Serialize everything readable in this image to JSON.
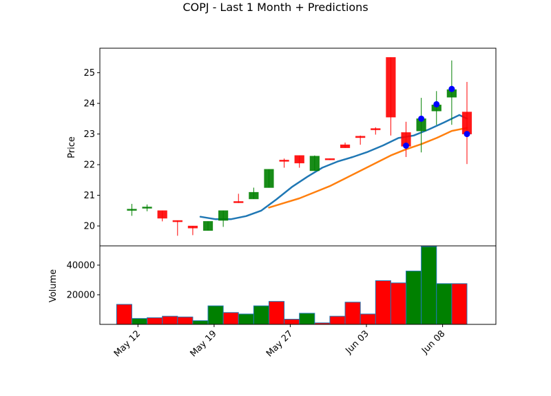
{
  "chart_data": {
    "type": "candlestick",
    "title": "COPJ - Last 1 Month + Predictions",
    "price_panel": {
      "ylabel": "Price",
      "ylim": [
        19.35,
        25.8
      ],
      "yticks": [
        20,
        21,
        22,
        23,
        24,
        25
      ],
      "ytick_labels": [
        "20",
        "21",
        "22",
        "23",
        "24",
        "25"
      ],
      "grid": false
    },
    "volume_panel": {
      "ylabel": "Volume",
      "ylim": [
        0,
        53000
      ],
      "yticks": [
        20000,
        40000
      ],
      "ytick_labels": [
        "20000",
        "40000"
      ],
      "grid": false
    },
    "xlim": [
      0,
      26
    ],
    "xticks": [
      {
        "x": 2.5,
        "label": "May 12"
      },
      {
        "x": 7.5,
        "label": "May 19"
      },
      {
        "x": 12.5,
        "label": "May 27"
      },
      {
        "x": 17.5,
        "label": "Jun 03"
      },
      {
        "x": 22.5,
        "label": "Jun 08"
      }
    ],
    "colors": {
      "up": "#008000",
      "down": "#ff0000",
      "ma_short": "#1f77b4",
      "ma_long": "#ff7f0e",
      "prediction": "#0000ff"
    },
    "candles": [
      {
        "x": 2.1,
        "open": 20.55,
        "high": 20.72,
        "low": 20.33,
        "close": 20.55
      },
      {
        "x": 3.1,
        "open": 20.58,
        "high": 20.7,
        "low": 20.48,
        "close": 20.62
      },
      {
        "x": 4.1,
        "open": 20.5,
        "high": 20.5,
        "low": 20.15,
        "close": 20.25
      },
      {
        "x": 5.1,
        "open": 20.18,
        "high": 20.18,
        "low": 19.68,
        "close": 20.15
      },
      {
        "x": 6.1,
        "open": 20.0,
        "high": 20.0,
        "low": 19.7,
        "close": 19.93
      },
      {
        "x": 7.1,
        "open": 19.85,
        "high": 20.15,
        "low": 19.85,
        "close": 20.15
      },
      {
        "x": 8.1,
        "open": 20.18,
        "high": 20.5,
        "low": 19.97,
        "close": 20.5
      },
      {
        "x": 9.1,
        "open": 20.8,
        "high": 21.05,
        "low": 20.75,
        "close": 20.77
      },
      {
        "x": 10.1,
        "open": 20.88,
        "high": 21.25,
        "low": 20.88,
        "close": 21.1
      },
      {
        "x": 11.1,
        "open": 21.25,
        "high": 21.85,
        "low": 21.25,
        "close": 21.85
      },
      {
        "x": 12.1,
        "open": 22.15,
        "high": 22.2,
        "low": 21.9,
        "close": 22.12
      },
      {
        "x": 13.1,
        "open": 22.3,
        "high": 22.3,
        "low": 21.9,
        "close": 22.05
      },
      {
        "x": 14.1,
        "open": 21.8,
        "high": 22.3,
        "low": 21.8,
        "close": 22.28
      },
      {
        "x": 15.1,
        "open": 22.2,
        "high": 22.2,
        "low": 22.15,
        "close": 22.18
      },
      {
        "x": 16.1,
        "open": 22.65,
        "high": 22.72,
        "low": 22.55,
        "close": 22.55
      },
      {
        "x": 17.1,
        "open": 22.93,
        "high": 22.95,
        "low": 22.65,
        "close": 22.88
      },
      {
        "x": 18.1,
        "open": 23.18,
        "high": 23.22,
        "low": 22.98,
        "close": 23.15
      },
      {
        "x": 19.1,
        "open": 25.5,
        "high": 25.5,
        "low": 22.95,
        "close": 23.55
      },
      {
        "x": 20.1,
        "open": 23.05,
        "high": 23.4,
        "low": 22.25,
        "close": 22.6
      },
      {
        "x": 21.1,
        "open": 23.1,
        "high": 24.18,
        "low": 22.4,
        "close": 23.5
      },
      {
        "x": 22.1,
        "open": 23.75,
        "high": 24.4,
        "low": 23.3,
        "close": 23.95
      },
      {
        "x": 23.1,
        "open": 24.2,
        "high": 25.4,
        "low": 23.3,
        "close": 24.45
      },
      {
        "x": 24.1,
        "open": 23.72,
        "high": 24.7,
        "low": 22.02,
        "close": 23.0
      }
    ],
    "volume": [
      {
        "x": 1.6,
        "value": 13500,
        "color": "down"
      },
      {
        "x": 2.6,
        "value": 4000,
        "color": "up"
      },
      {
        "x": 3.6,
        "value": 4500,
        "color": "down"
      },
      {
        "x": 4.6,
        "value": 5500,
        "color": "down"
      },
      {
        "x": 5.6,
        "value": 5000,
        "color": "down"
      },
      {
        "x": 6.6,
        "value": 2500,
        "color": "up"
      },
      {
        "x": 7.6,
        "value": 12500,
        "color": "up"
      },
      {
        "x": 8.6,
        "value": 8000,
        "color": "down"
      },
      {
        "x": 9.6,
        "value": 7000,
        "color": "up"
      },
      {
        "x": 10.6,
        "value": 12500,
        "color": "up"
      },
      {
        "x": 11.6,
        "value": 15500,
        "color": "down"
      },
      {
        "x": 12.6,
        "value": 3500,
        "color": "down"
      },
      {
        "x": 13.6,
        "value": 7500,
        "color": "up"
      },
      {
        "x": 14.6,
        "value": 1000,
        "color": "down"
      },
      {
        "x": 15.6,
        "value": 5500,
        "color": "down"
      },
      {
        "x": 16.6,
        "value": 15000,
        "color": "down"
      },
      {
        "x": 17.6,
        "value": 7000,
        "color": "down"
      },
      {
        "x": 18.6,
        "value": 29500,
        "color": "down"
      },
      {
        "x": 19.6,
        "value": 28000,
        "color": "down"
      },
      {
        "x": 20.6,
        "value": 36000,
        "color": "up"
      },
      {
        "x": 21.6,
        "value": 52500,
        "color": "up"
      },
      {
        "x": 22.6,
        "value": 27500,
        "color": "up"
      },
      {
        "x": 23.6,
        "value": 27500,
        "color": "down"
      }
    ],
    "moving_averages": [
      {
        "color": "ma_short",
        "x": [
          6.6,
          7.6,
          8.6,
          9.6,
          10.6,
          11.6,
          12.6,
          13.6,
          14.6,
          15.6,
          16.6,
          17.6,
          18.6,
          19.6,
          20.6,
          21.6,
          22.6,
          23.6
        ],
        "y": [
          20.3,
          20.22,
          20.22,
          20.32,
          20.5,
          20.87,
          21.27,
          21.6,
          21.9,
          22.1,
          22.25,
          22.42,
          22.63,
          22.87,
          22.95,
          23.15,
          23.38,
          23.62
        ]
      },
      {
        "color": "ma_short",
        "x": [
          23.6,
          24.1
        ],
        "y": [
          23.62,
          23.5
        ]
      },
      {
        "color": "ma_long",
        "x": [
          11.1,
          12.1,
          13.1,
          14.1,
          15.1,
          16.1,
          17.1,
          18.1,
          19.1,
          20.1,
          21.1,
          22.1,
          23.1,
          24.1
        ],
        "y": [
          20.6,
          20.75,
          20.9,
          21.1,
          21.3,
          21.55,
          21.8,
          22.05,
          22.3,
          22.5,
          22.67,
          22.87,
          23.1,
          23.2
        ]
      }
    ],
    "predictions": [
      {
        "x": 20.1,
        "y": 22.62
      },
      {
        "x": 21.1,
        "y": 23.5
      },
      {
        "x": 22.1,
        "y": 23.97
      },
      {
        "x": 23.1,
        "y": 24.47
      },
      {
        "x": 24.1,
        "y": 23.0
      }
    ]
  }
}
